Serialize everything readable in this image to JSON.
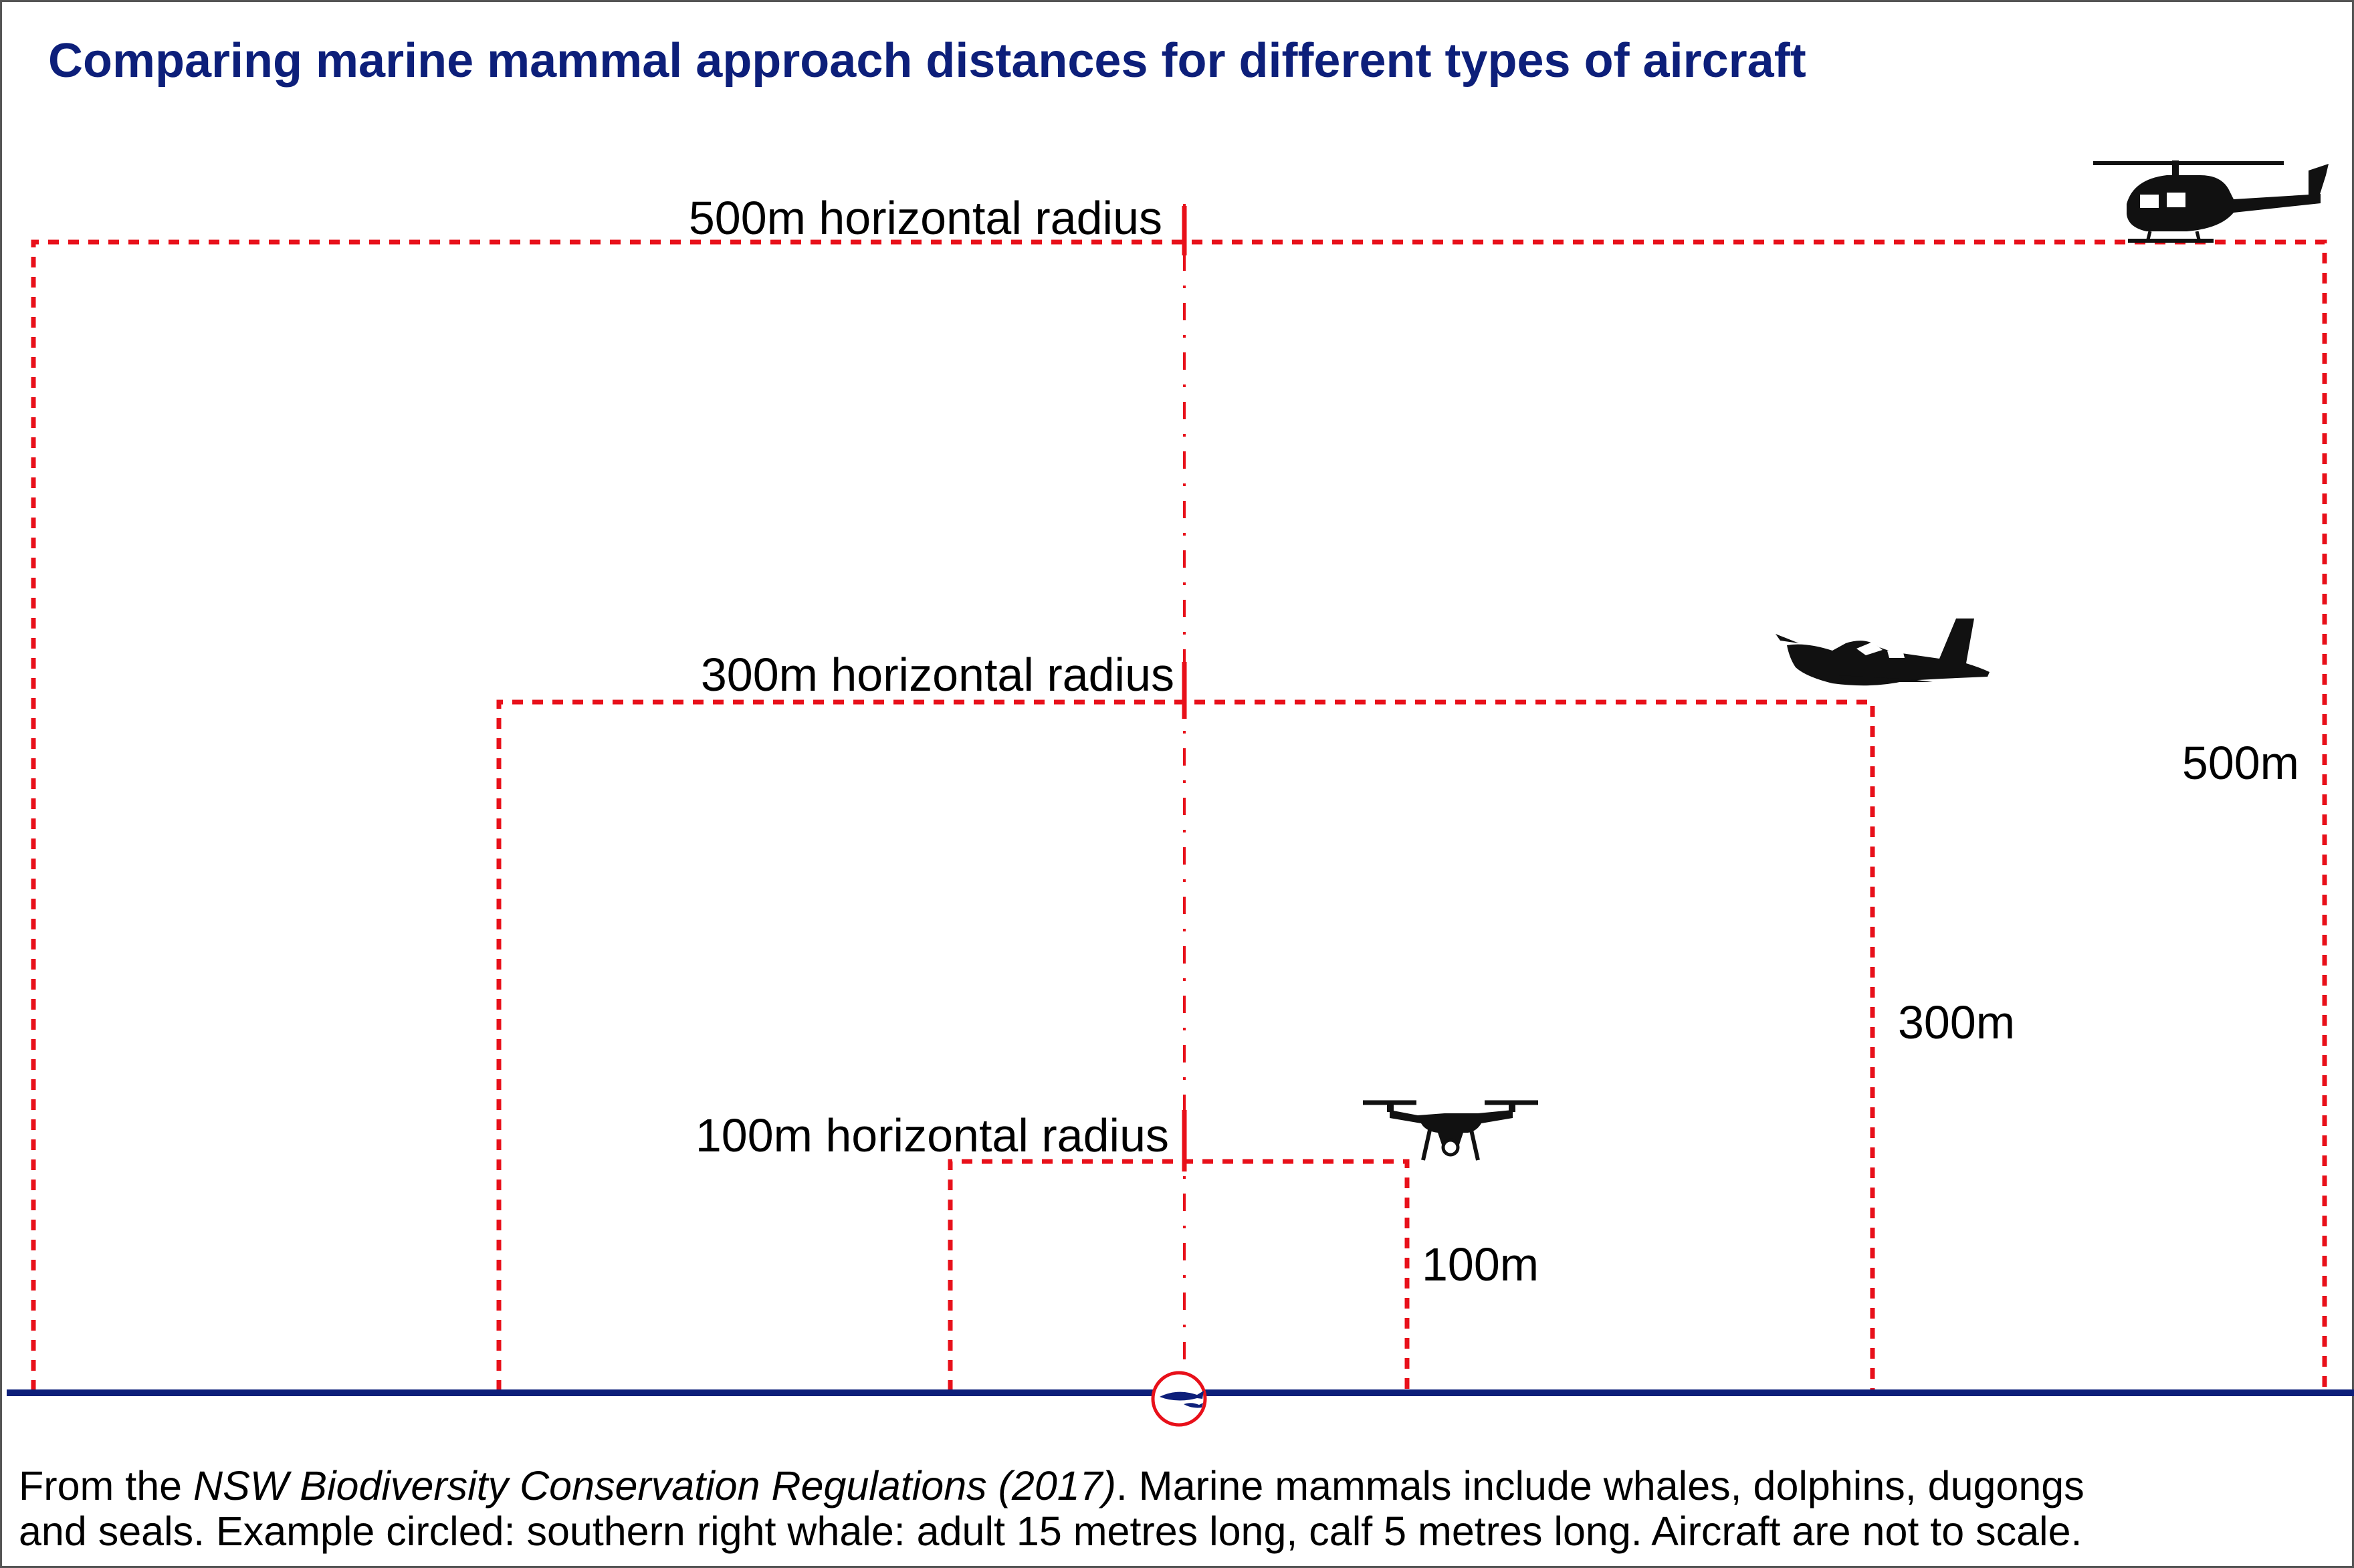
{
  "title": "Comparing marine mammal approach distances for different types of aircraft",
  "zones": {
    "helicopter": {
      "radius_label": "500m horizontal radius",
      "height_label": "500m",
      "icon": "helicopter-icon"
    },
    "plane": {
      "radius_label": "300m horizontal radius",
      "height_label": "300m",
      "icon": "airplane-icon"
    },
    "drone": {
      "radius_label": "100m horizontal radius",
      "height_label": "100m",
      "icon": "drone-icon"
    }
  },
  "whale_icon": "whale-icon",
  "footnote": {
    "line1_prefix": "From the ",
    "line1_italic": "NSW Biodiversity Conservation Regulations (2017)",
    "line1_suffix": ". Marine mammals include whales, dolphins, dugongs",
    "line2": "and seals. Example circled: southern right whale: adult 15 metres long, calf 5 metres long. Aircraft are not to scale."
  },
  "colors": {
    "title": "#0d1f7a",
    "dashes": "#e8101a",
    "sea_line": "#0d1f7a",
    "silhouette": "#111111",
    "border": "#555555"
  }
}
